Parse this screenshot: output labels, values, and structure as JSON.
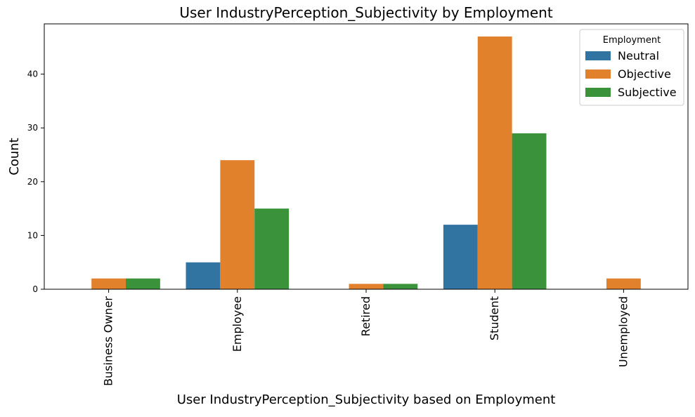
{
  "chart_data": {
    "type": "bar",
    "title": "User IndustryPerception_Subjectivity by Employment",
    "xlabel": "User IndustryPerception_Subjectivity based on Employment",
    "ylabel": "Count",
    "categories": [
      "Business Owner",
      "Employee",
      "Retired",
      "Student",
      "Unemployed"
    ],
    "series": [
      {
        "name": "Neutral",
        "values": [
          0,
          5,
          0,
          12,
          0
        ],
        "color": "#3274a1"
      },
      {
        "name": "Objective",
        "values": [
          2,
          24,
          1,
          47,
          2
        ],
        "color": "#e1812c"
      },
      {
        "name": "Subjective",
        "values": [
          2,
          15,
          1,
          29,
          0
        ],
        "color": "#3a923a"
      }
    ],
    "ylim": [
      0,
      49.35
    ],
    "yticks": [
      0,
      10,
      20,
      30,
      40
    ],
    "legend": {
      "title": "Employment",
      "placement": "top-right"
    },
    "grid": false
  }
}
